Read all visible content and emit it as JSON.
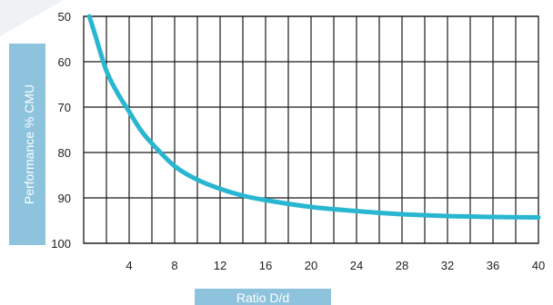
{
  "chart_data": {
    "type": "line",
    "title": "",
    "xlabel": "Ratio D/d",
    "ylabel": "Performance % CMU",
    "xlim": [
      0,
      40
    ],
    "ylim": [
      50,
      100
    ],
    "y_inverted": true,
    "x_ticks": [
      4,
      8,
      12,
      16,
      20,
      24,
      28,
      32,
      36,
      40
    ],
    "y_ticks": [
      50,
      60,
      70,
      80,
      90,
      100
    ],
    "x_tick_labels": [
      "4",
      "8",
      "12",
      "16",
      "20",
      "24",
      "28",
      "32",
      "36",
      "40"
    ],
    "y_tick_labels": [
      "50",
      "60",
      "70",
      "80",
      "90",
      "100"
    ],
    "grid": true,
    "series": [
      {
        "x": [
          0.5,
          1,
          2,
          3,
          4,
          5,
          6,
          8,
          10,
          12,
          14,
          16,
          20,
          24,
          28,
          32,
          36,
          40
        ],
        "y": [
          50,
          54,
          62,
          67,
          71,
          75,
          78,
          83,
          86,
          88,
          89.5,
          90.5,
          92,
          92.9,
          93.6,
          94,
          94.2,
          94.3
        ]
      }
    ],
    "colors": {
      "line": "#29b6d1",
      "label_box": "#8ec3dd",
      "grid": "#1a1a1a",
      "text": "#1f1f1f"
    }
  }
}
